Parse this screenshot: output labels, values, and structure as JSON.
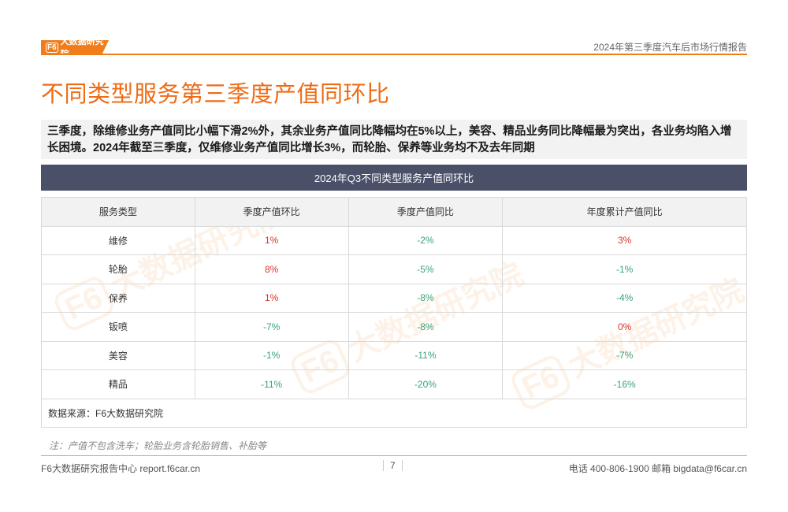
{
  "header": {
    "logo_text": "大数据研究院",
    "logo_mark": "F6",
    "report_title": "2024年第三季度汽车后市场行情报告"
  },
  "page_title": "不同类型服务第三季度产值同环比",
  "summary": "三季度，除维修业务产值同比小幅下滑2%外，其余业务产值同比降幅均在5%以上，美容、精品业务同比降幅最为突出，各业务均陷入增长困境。2024年截至三季度，仅维修业务产值同比增长3%，而轮胎、保养等业务均不及去年同期",
  "table": {
    "banner": "2024年Q3不同类型服务产值同环比",
    "headers": [
      "服务类型",
      "季度产值环比",
      "季度产值同比",
      "年度累计产值同比"
    ],
    "rows": [
      {
        "cat": "维修",
        "qoq": "1%",
        "yoy": "-2%",
        "ytd": "3%"
      },
      {
        "cat": "轮胎",
        "qoq": "8%",
        "yoy": "-5%",
        "ytd": "-1%"
      },
      {
        "cat": "保养",
        "qoq": "1%",
        "yoy": "-8%",
        "ytd": "-4%"
      },
      {
        "cat": "钣喷",
        "qoq": "-7%",
        "yoy": "-8%",
        "ytd": "0%"
      },
      {
        "cat": "美容",
        "qoq": "-1%",
        "yoy": "-11%",
        "ytd": "-7%"
      },
      {
        "cat": "精品",
        "qoq": "-11%",
        "yoy": "-20%",
        "ytd": "-16%"
      }
    ],
    "source": "数据来源：F6大数据研究院"
  },
  "note": "注：产值不包含洗车；轮胎业务含轮胎销售、补胎等",
  "footer": {
    "left": "F6大数据研究报告中心 report.f6car.cn",
    "page": "7",
    "right": "电话 400-806-1900  邮箱 bigdata@f6car.cn"
  },
  "watermark": {
    "text": "大数据研究院",
    "mark": "F6"
  },
  "colors": {
    "accent": "#ee6c16",
    "banner": "#4a5068",
    "positive": "#d9342b",
    "negative": "#3aa37a"
  }
}
